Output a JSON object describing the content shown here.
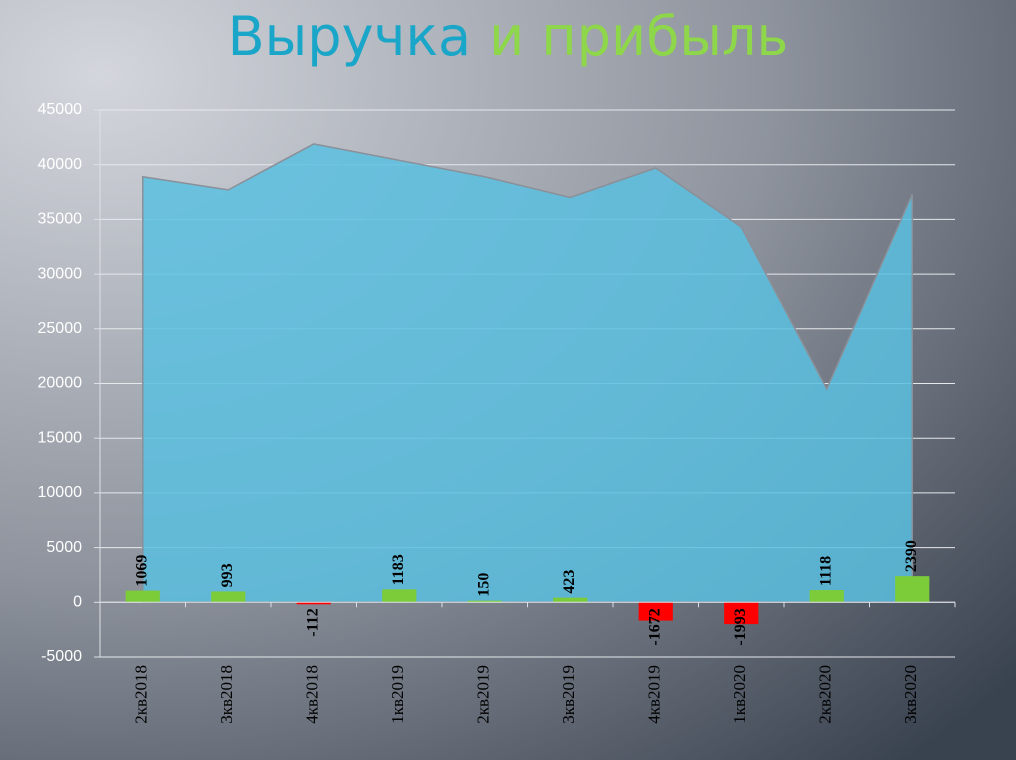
{
  "chart_data": {
    "type": "combo",
    "title": [
      "Выручка",
      "и прибыль"
    ],
    "title_colors": [
      "#1aa6c8",
      "#8ed64a"
    ],
    "categories": [
      "2кв2018",
      "3кв2018",
      "4кв2018",
      "1кв2019",
      "2кв2019",
      "3кв2019",
      "4кв2019",
      "1кв2020",
      "2кв2020",
      "3кв2020"
    ],
    "series": [
      {
        "type": "area",
        "color": "#5bc0e0",
        "values": [
          38900,
          37700,
          41900,
          40400,
          38900,
          37000,
          39700,
          34300,
          19500,
          37300
        ]
      },
      {
        "type": "bar",
        "color": "#7ccc3a",
        "negative_color": "#ff0000",
        "values": [
          1069,
          993,
          -112,
          1183,
          150,
          423,
          -1672,
          -1993,
          1118,
          2390
        ]
      }
    ],
    "ylim": [
      -5000,
      45000
    ],
    "yticks": [
      -5000,
      0,
      5000,
      10000,
      15000,
      20000,
      25000,
      30000,
      35000,
      40000,
      45000
    ],
    "grid": true
  }
}
